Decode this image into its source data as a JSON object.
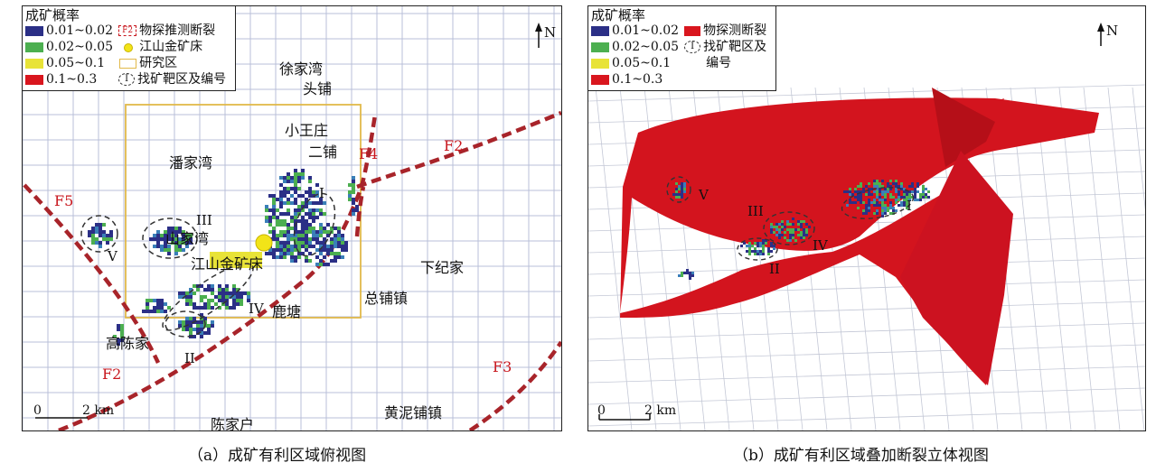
{
  "panel_a": {
    "legend": {
      "title": "成矿概率",
      "items": [
        {
          "label": "0.01~0.02",
          "color": "#2b2f86"
        },
        {
          "label": "0.02~0.05",
          "color": "#4caf50"
        },
        {
          "label": "0.05~0.1",
          "color": "#e8e337"
        },
        {
          "label": "0.1~0.3",
          "color": "#d9161e"
        }
      ],
      "symbols": [
        {
          "label": "物探推测断裂",
          "icon": "fault-symbol-icon",
          "icon_text": "F2"
        },
        {
          "label": "江山金矿床",
          "icon": "gold-deposit-icon"
        },
        {
          "label": "研究区",
          "icon": "study-area-icon"
        },
        {
          "label": "找矿靶区及编号",
          "icon": "target-area-icon",
          "icon_text": "I"
        }
      ]
    },
    "north": "N",
    "places": [
      "徐家湾",
      "头铺",
      "小王庄",
      "潘家湾",
      "二铺",
      "下纪家",
      "鹿塘",
      "总铺镇",
      "高陈家",
      "陈家户",
      "黄泥铺镇",
      "江山金矿床",
      "山家湾"
    ],
    "faults": [
      "F4",
      "F2",
      "F5",
      "F2",
      "F3"
    ],
    "targets": [
      "I",
      "II",
      "III",
      "IV",
      "V"
    ],
    "scale": {
      "zero": "0",
      "end": "2 km"
    }
  },
  "panel_b": {
    "legend": {
      "title": "成矿概率",
      "items": [
        {
          "label": "0.01~0.02",
          "color": "#2b2f86"
        },
        {
          "label": "0.02~0.05",
          "color": "#4caf50"
        },
        {
          "label": "0.05~0.1",
          "color": "#e8e337"
        },
        {
          "label": "0.1~0.3",
          "color": "#d9161e"
        }
      ],
      "fault_label": "物探测断裂",
      "target_label_1": "找矿靶区及",
      "target_label_2": "编号",
      "target_icon_text": "I"
    },
    "north": "N",
    "targets": [
      "V",
      "III",
      "IV",
      "II",
      "I"
    ],
    "scale": {
      "zero": "0",
      "end": "2 km"
    }
  },
  "captions": {
    "a": "（a）成矿有利区域俯视图",
    "b": "（b）成矿有利区域叠加断裂立体视图"
  }
}
